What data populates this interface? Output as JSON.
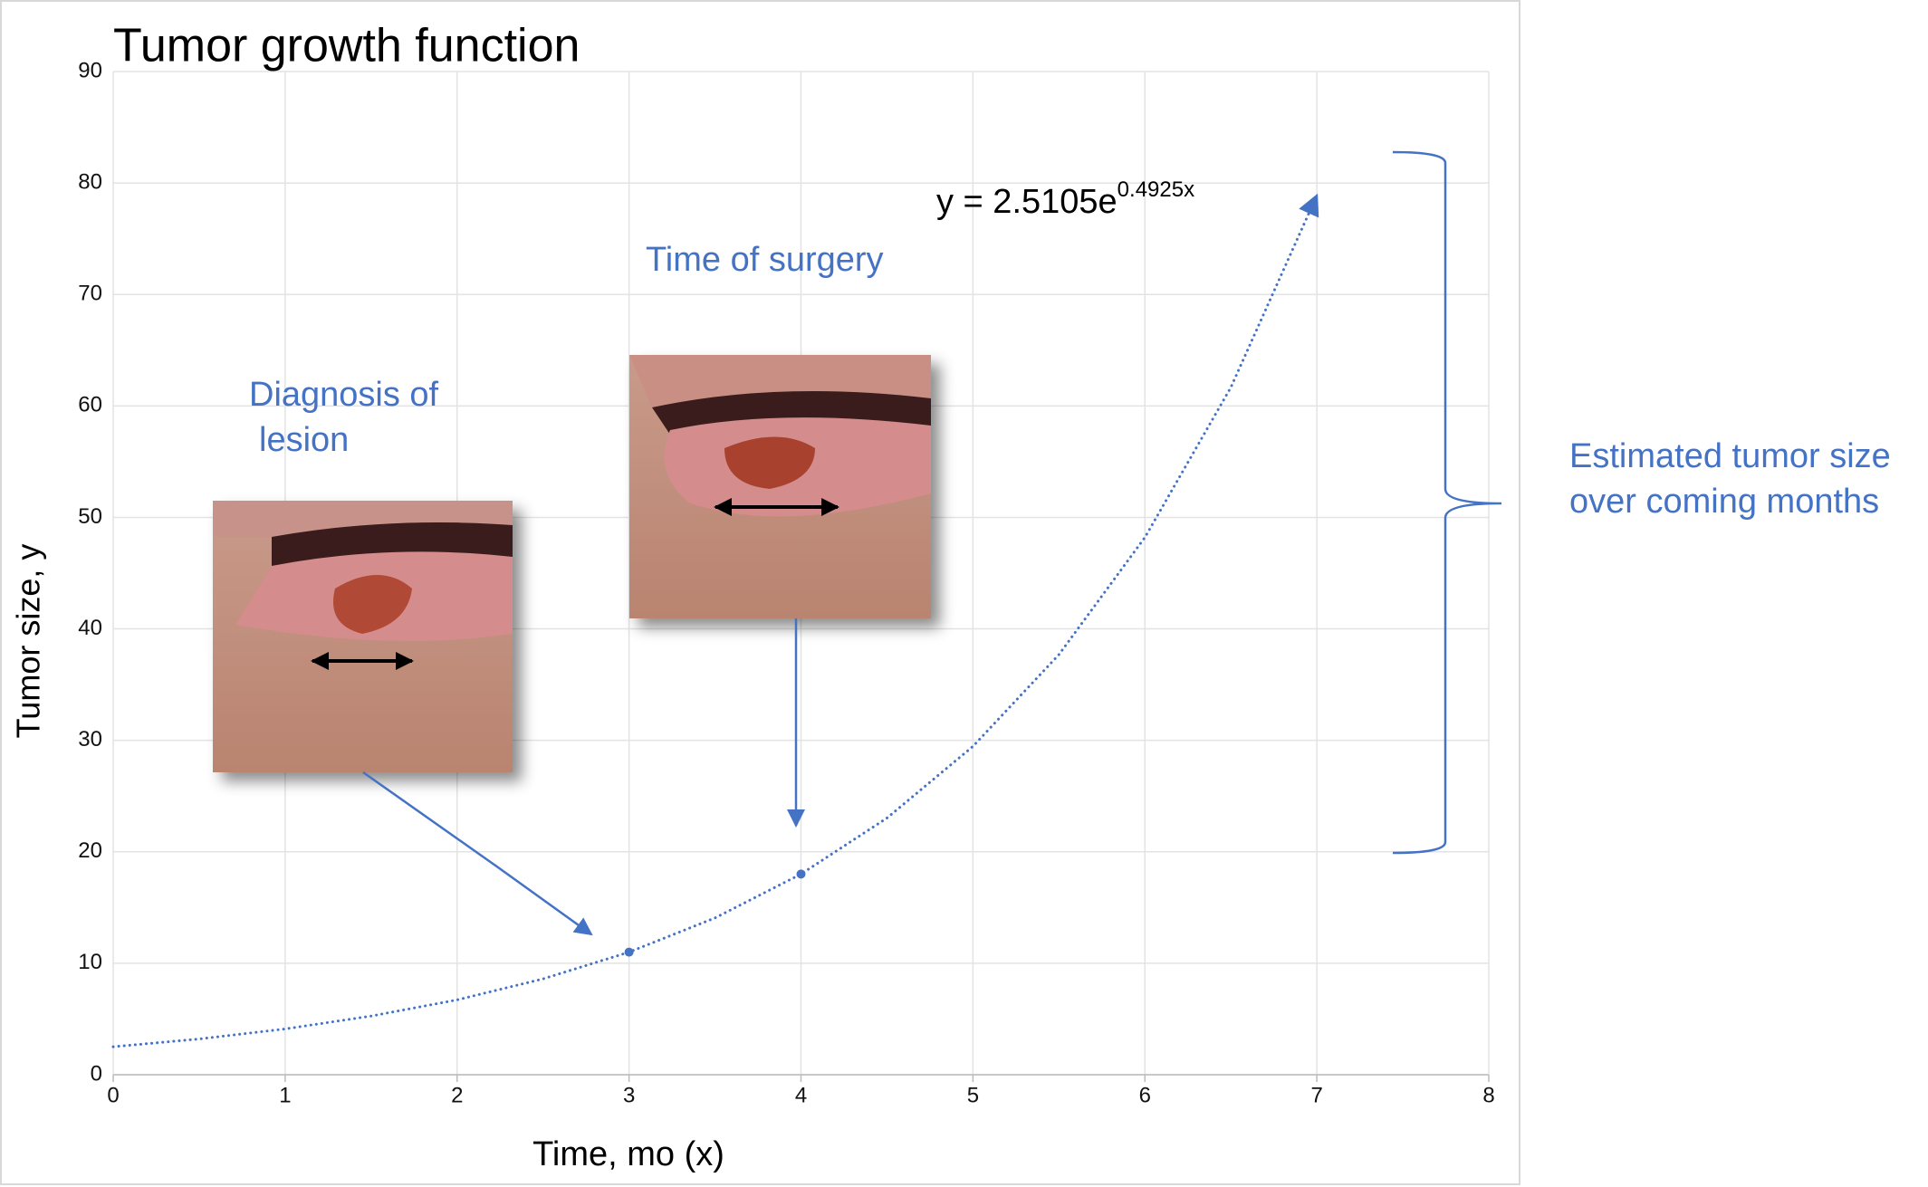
{
  "chart_data": {
    "type": "line",
    "title": "Tumor growth function",
    "x_label": "Time, mo (x)",
    "y_label": "Tumor size, y",
    "x": [
      0,
      0.5,
      1,
      1.5,
      2,
      2.5,
      3,
      3.5,
      4,
      4.5,
      5,
      5.5,
      6,
      6.5,
      7
    ],
    "values": [
      2.51,
      3.21,
      4.11,
      5.26,
      6.72,
      8.6,
      11.0,
      14.07,
      18.0,
      23.03,
      29.46,
      37.69,
      48.21,
      61.67,
      78.88
    ],
    "color": "#4472c4",
    "points": {
      "x": [
        3,
        4
      ],
      "values": [
        11.0,
        18.0
      ]
    },
    "xlim": [
      0,
      8
    ],
    "ylim": [
      0,
      90
    ],
    "xticks": [
      0,
      1,
      2,
      3,
      4,
      5,
      6,
      7,
      8
    ],
    "yticks": [
      0,
      10,
      20,
      30,
      40,
      50,
      60,
      70,
      80,
      90
    ],
    "grid": true,
    "equation": {
      "text": "y = 2.5105e",
      "exponent": "0.4925x"
    },
    "annotations": [
      "Time of surgery",
      "Diagnosis of",
      "lesion",
      "Estimated tumor size",
      "over coming months"
    ]
  }
}
